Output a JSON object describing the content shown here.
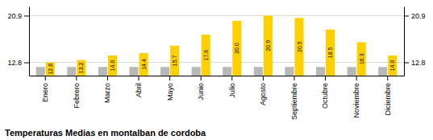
{
  "chart_data": {
    "type": "bar",
    "title": "Temperaturas Medias en montalban de cordoba",
    "categories": [
      "Enero",
      "Febrero",
      "Marzo",
      "Abril",
      "Mayo",
      "Junio",
      "Julio",
      "Agosto",
      "Septiembre",
      "Octubre",
      "Noviembre",
      "Diciembre"
    ],
    "series": [
      {
        "color": "#B8B8B8",
        "values": [
          12.0,
          12.0,
          12.0,
          12.0,
          12.0,
          12.0,
          12.0,
          12.0,
          12.0,
          12.0,
          12.0,
          12.0
        ]
      },
      {
        "color": "#FFD000",
        "values": [
          12.8,
          13.2,
          14.0,
          14.4,
          15.7,
          17.6,
          20.0,
          20.9,
          20.5,
          18.5,
          16.3,
          14.0
        ],
        "value_labels": [
          "12.8",
          "13.2",
          "14.0",
          "14.4",
          "15.7",
          "17.6",
          "20.0",
          "20.9",
          "20.5",
          "18.5",
          "16.3",
          "14.0"
        ],
        "data_labels": true
      }
    ],
    "ylim": [
      10.5,
      22.5
    ],
    "yticks": [
      12.8,
      20.9
    ],
    "y2lim": [
      10.5,
      22.5
    ],
    "y2ticks": [
      12.8,
      20.9
    ],
    "grid": true
  }
}
